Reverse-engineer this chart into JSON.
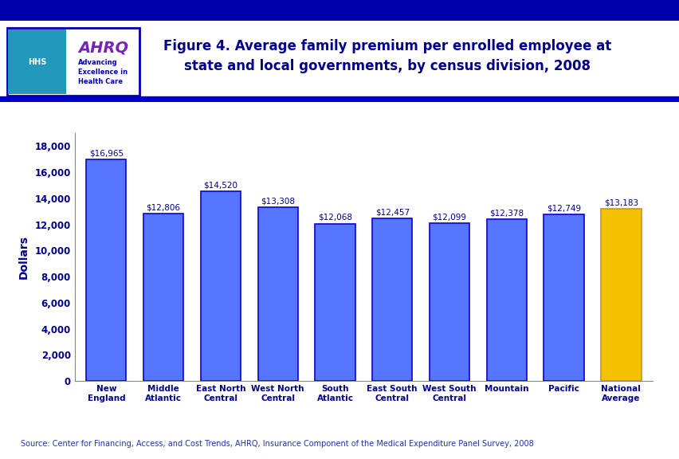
{
  "categories": [
    "New\nEngland",
    "Middle\nAtlantic",
    "East North\nCentral",
    "West North\nCentral",
    "South\nAtlantic",
    "East South\nCentral",
    "West South\nCentral",
    "Mountain",
    "Pacific",
    "National\nAverage"
  ],
  "values": [
    16965,
    12806,
    14520,
    13308,
    12068,
    12457,
    12099,
    12378,
    12749,
    13183
  ],
  "bar_colors": [
    "#5577ff",
    "#5577ff",
    "#5577ff",
    "#5577ff",
    "#5577ff",
    "#5577ff",
    "#5577ff",
    "#5577ff",
    "#5577ff",
    "#f5c200"
  ],
  "bar_labels": [
    "$16,965",
    "$12,806",
    "$14,520",
    "$13,308",
    "$12,068",
    "$12,457",
    "$12,099",
    "$12,378",
    "$12,749",
    "$13,183"
  ],
  "ylabel": "Dollars",
  "ylim": [
    0,
    19000
  ],
  "yticks": [
    0,
    2000,
    4000,
    6000,
    8000,
    10000,
    12000,
    14000,
    16000,
    18000
  ],
  "ytick_labels": [
    "0",
    "2,000",
    "4,000",
    "6,000",
    "8,000",
    "10,000",
    "12,000",
    "14,000",
    "16,000",
    "18,000"
  ],
  "title_line1": "Figure 4. Average family premium per enrolled employee at",
  "title_line2": "state and local governments, by census division, 2008",
  "source_text": "Source: Center for Financing, Access, and Cost Trends, AHRQ, Insurance Component of the Medical Expenditure Panel Survey, 2008",
  "background_color": "#ffffff",
  "plot_bg_color": "#ffffff",
  "bar_edge_color": "#1100cc",
  "title_color": "#00008B",
  "axis_label_color": "#00008B",
  "tick_label_color": "#00008B",
  "source_color": "#2233aa",
  "header_line_color": "#0000cc",
  "logo_box_color": "#0000aa",
  "ahrq_left_bg": "#1199cc",
  "ahrq_text_color": "#6600cc",
  "ahrq_sub_color": "#0000aa",
  "gold_bar_color": "#f5c200",
  "gold_bar_edge": "#cc9900"
}
